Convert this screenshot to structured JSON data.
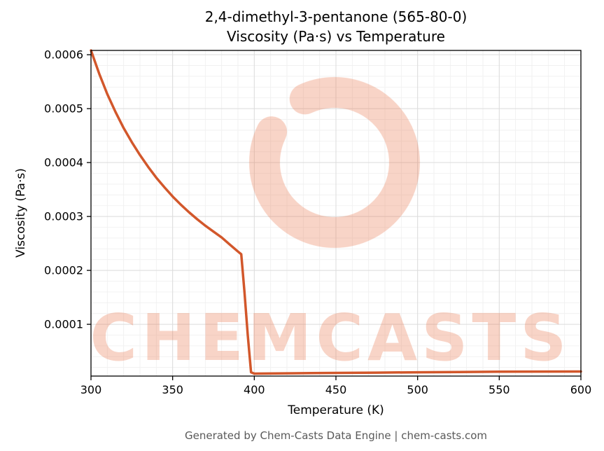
{
  "title": {
    "line1": "2,4-dimethyl-3-pentanone (565-80-0)",
    "line2": "Viscosity (Pa·s) vs Temperature"
  },
  "footer": {
    "text": "Generated by Chem-Casts Data Engine | chem-casts.com"
  },
  "watermark": {
    "text": "CHEMCASTS",
    "color": "#e87950",
    "opacity": 0.32
  },
  "chart_data": {
    "type": "line",
    "title": "2,4-dimethyl-3-pentanone (565-80-0) Viscosity (Pa·s) vs Temperature",
    "xlabel": "Temperature (K)",
    "ylabel": "Viscosity (Pa·s)",
    "xlim": [
      300,
      600
    ],
    "ylim": [
      4e-06,
      0.000608
    ],
    "xticks": [
      300,
      350,
      400,
      450,
      500,
      550,
      600
    ],
    "yticks": [
      0.0001,
      0.0002,
      0.0003,
      0.0004,
      0.0005,
      0.0006
    ],
    "minor_x": 10,
    "minor_y": 2e-05,
    "grid": true,
    "legend": "none",
    "line_color": "#d2572b",
    "line_width": 3.5,
    "series": [
      {
        "name": "viscosity",
        "x": [
          300,
          305,
          310,
          315,
          320,
          325,
          330,
          335,
          340,
          345,
          350,
          355,
          360,
          365,
          370,
          375,
          380,
          385,
          390,
          392,
          394,
          396,
          398,
          400,
          425,
          450,
          475,
          500,
          525,
          550,
          575,
          600
        ],
        "y": [
          0.000608,
          0.000565,
          0.000527,
          0.000494,
          0.000464,
          0.000438,
          0.000414,
          0.000392,
          0.000372,
          0.000354,
          0.000337,
          0.000322,
          0.000308,
          0.000295,
          0.000283,
          0.000272,
          0.000261,
          0.000248,
          0.000235,
          0.00023,
          0.00016,
          8e-05,
          1.1e-05,
          8.5e-06,
          9.2e-06,
          9.8e-06,
          1.04e-05,
          1.1e-05,
          1.15e-05,
          1.2e-05,
          1.23e-05,
          1.25e-05
        ]
      }
    ]
  }
}
